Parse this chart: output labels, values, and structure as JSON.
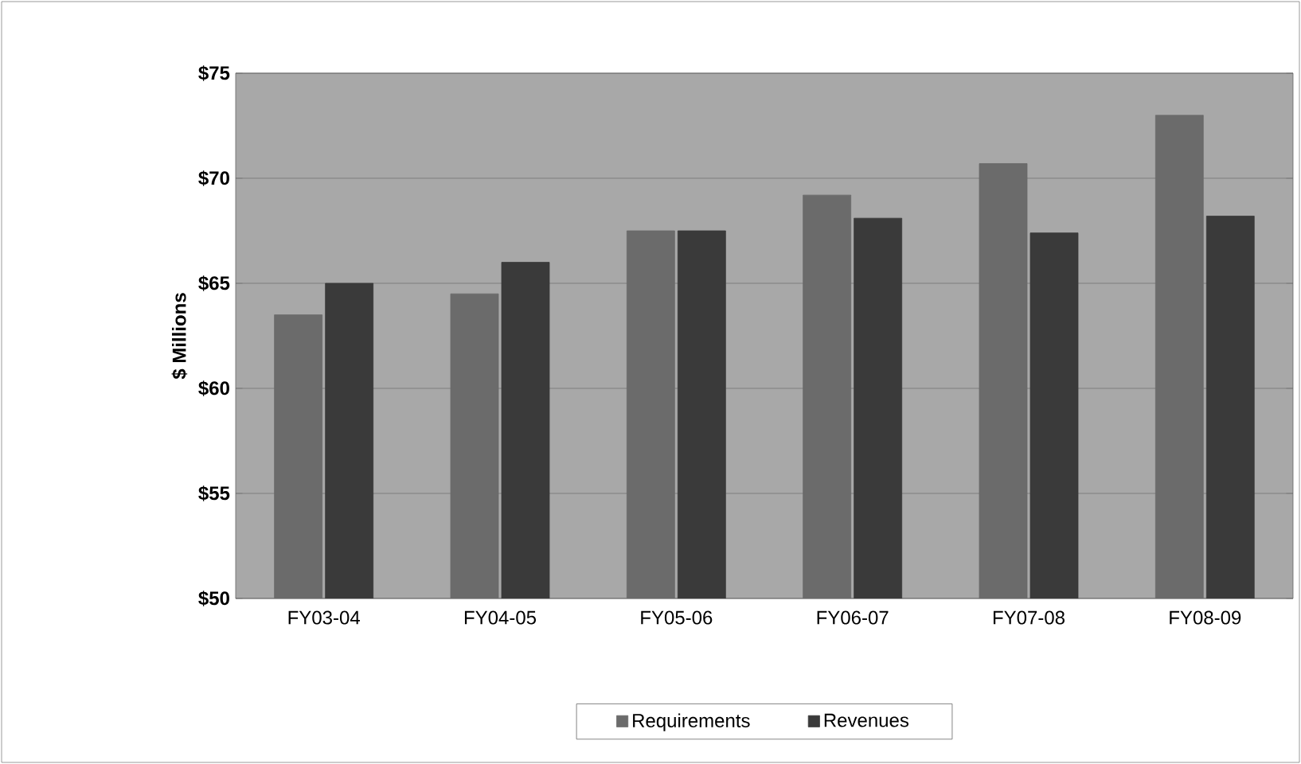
{
  "chart_data": {
    "type": "bar",
    "ylabel": "$ Millions",
    "categories": [
      "FY03-04",
      "FY04-05",
      "FY05-06",
      "FY06-07",
      "FY07-08",
      "FY08-09"
    ],
    "series": [
      {
        "name": "Requirements",
        "color": "#6b6b6b",
        "values": [
          63.5,
          64.5,
          67.5,
          69.2,
          70.7,
          73.0
        ]
      },
      {
        "name": "Revenues",
        "color": "#3a3a3a",
        "values": [
          65.0,
          66.0,
          67.5,
          68.1,
          67.4,
          68.2
        ]
      }
    ],
    "ylim": [
      50,
      75
    ],
    "yticks": [
      {
        "value": 50,
        "label": "$50"
      },
      {
        "value": 55,
        "label": "$55"
      },
      {
        "value": 60,
        "label": "$60"
      },
      {
        "value": 65,
        "label": "$65"
      },
      {
        "value": 70,
        "label": "$70"
      },
      {
        "value": 75,
        "label": "$75"
      }
    ],
    "grid": "y",
    "legend": "bottom"
  }
}
